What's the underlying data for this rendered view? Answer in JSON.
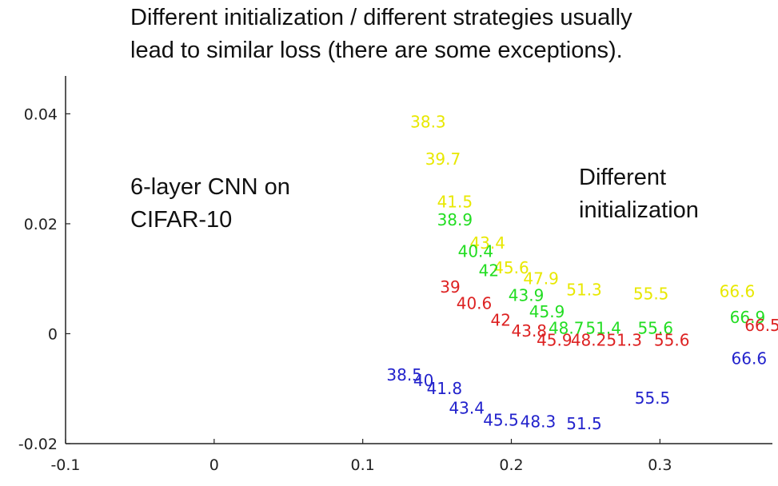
{
  "title_lines": [
    "Different initialization / different strategies usually",
    "lead to similar loss (there are some exceptions)."
  ],
  "annotations": {
    "left_lines": [
      "6-layer CNN on",
      "CIFAR-10"
    ],
    "right_lines": [
      "Different",
      "initialization"
    ]
  },
  "chart_data": {
    "type": "scatter",
    "title": "",
    "xlabel": "",
    "ylabel": "",
    "xlim": [
      -0.1,
      0.38
    ],
    "ylim": [
      -0.02,
      0.045
    ],
    "xticks": [
      -0.1,
      0,
      0.1,
      0.2,
      0.3
    ],
    "xtick_labels": [
      "-0.1",
      "0",
      "0.1",
      "0.2",
      "0.3"
    ],
    "yticks": [
      -0.02,
      0,
      0.02,
      0.04
    ],
    "ytick_labels": [
      "-0.02",
      "0",
      "0.02",
      "0.04"
    ],
    "grid": false,
    "note": "Each point is drawn as its printed label (numbers, no marker).",
    "series": [
      {
        "color": "#e8e800",
        "points": [
          {
            "label": "38.3",
            "x": 0.132,
            "y": 0.0385
          },
          {
            "label": "39.7",
            "x": 0.142,
            "y": 0.0318
          },
          {
            "label": "41.5",
            "x": 0.15,
            "y": 0.024
          },
          {
            "label": "43.4",
            "x": 0.172,
            "y": 0.0165
          },
          {
            "label": "45.6",
            "x": 0.188,
            "y": 0.012
          },
          {
            "label": "47.9",
            "x": 0.208,
            "y": 0.01
          },
          {
            "label": "51.3",
            "x": 0.237,
            "y": 0.008
          },
          {
            "label": "55.5",
            "x": 0.282,
            "y": 0.0073
          },
          {
            "label": "66.6",
            "x": 0.34,
            "y": 0.0077
          }
        ]
      },
      {
        "color": "#22dd22",
        "points": [
          {
            "label": "38.9",
            "x": 0.15,
            "y": 0.0207
          },
          {
            "label": "40.4",
            "x": 0.164,
            "y": 0.015
          },
          {
            "label": "42",
            "x": 0.178,
            "y": 0.0115
          },
          {
            "label": "43.9",
            "x": 0.198,
            "y": 0.007
          },
          {
            "label": "45.9",
            "x": 0.212,
            "y": 0.004
          },
          {
            "label": "48.7",
            "x": 0.225,
            "y": 0.001
          },
          {
            "label": "51.4",
            "x": 0.25,
            "y": 0.001
          },
          {
            "label": "55.6",
            "x": 0.285,
            "y": 0.001
          },
          {
            "label": "66.9",
            "x": 0.347,
            "y": 0.003
          }
        ]
      },
      {
        "color": "#dd2222",
        "points": [
          {
            "label": "39",
            "x": 0.152,
            "y": 0.0085
          },
          {
            "label": "40.6",
            "x": 0.163,
            "y": 0.0055
          },
          {
            "label": "42",
            "x": 0.186,
            "y": 0.0025
          },
          {
            "label": "43.8",
            "x": 0.2,
            "y": 0.0005
          },
          {
            "label": "45.9",
            "x": 0.217,
            "y": -0.0012
          },
          {
            "label": "48.2",
            "x": 0.24,
            "y": -0.0012
          },
          {
            "label": "51.3",
            "x": 0.264,
            "y": -0.0012
          },
          {
            "label": "55.6",
            "x": 0.296,
            "y": -0.0012
          },
          {
            "label": "66.5",
            "x": 0.357,
            "y": 0.0015
          }
        ]
      },
      {
        "color": "#2222cc",
        "points": [
          {
            "label": "38.5",
            "x": 0.116,
            "y": -0.0075
          },
          {
            "label": "40",
            "x": 0.134,
            "y": -0.0085
          },
          {
            "label": "41.8",
            "x": 0.143,
            "y": -0.01
          },
          {
            "label": "43.4",
            "x": 0.158,
            "y": -0.0135
          },
          {
            "label": "45.5",
            "x": 0.181,
            "y": -0.0157
          },
          {
            "label": "48.3",
            "x": 0.206,
            "y": -0.016
          },
          {
            "label": "51.5",
            "x": 0.237,
            "y": -0.0164
          },
          {
            "label": "55.5",
            "x": 0.283,
            "y": -0.0117
          },
          {
            "label": "66.6",
            "x": 0.348,
            "y": -0.0045
          }
        ]
      }
    ]
  }
}
